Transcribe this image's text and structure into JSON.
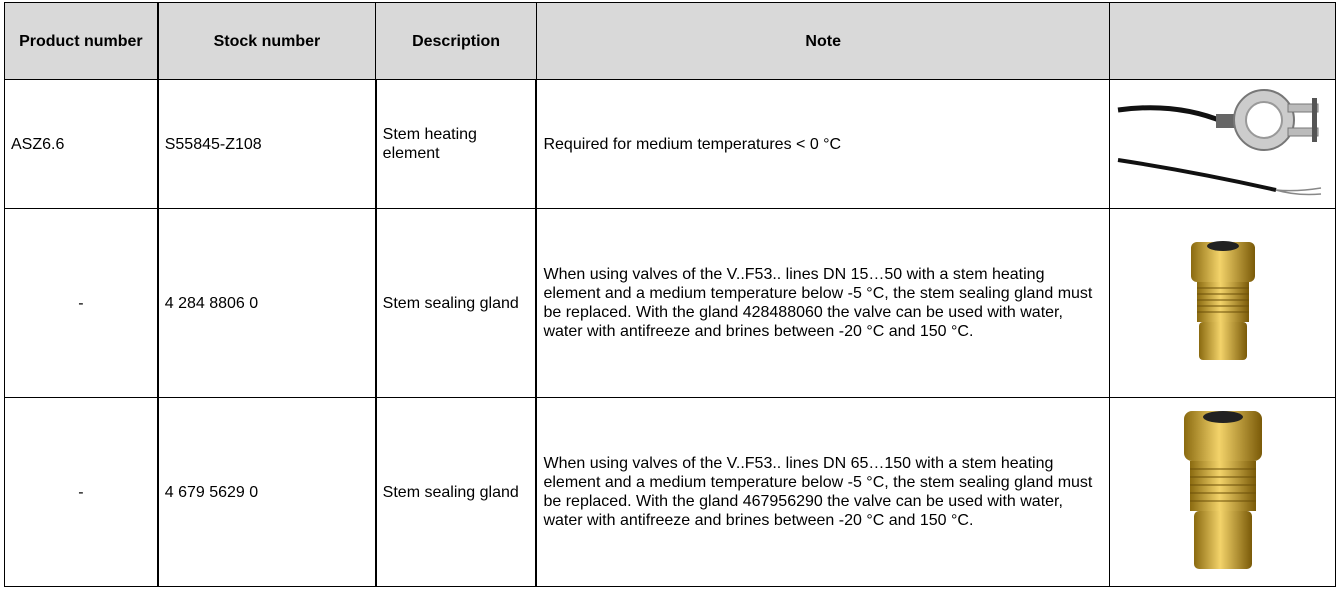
{
  "table": {
    "header": [
      "Product number",
      "Stock number",
      "Description",
      "Note"
    ],
    "rows": [
      [
        "ASZ6.6",
        "S55845-Z108",
        "Stem heating element",
        "Required for medium temperatures < 0 °C"
      ],
      [
        "-",
        "4 284 8806 0",
        "Stem sealing gland",
        "When using valves of the V..F53.. lines DN 15…50 with a stem heating element and a medium temperature below -5 °C, the stem sealing gland must be replaced. With the gland 428488060 the valve can be used with water, water with antifreeze and brines between -20 °C and 150 °C."
      ],
      [
        "-",
        "4 679 5629 0",
        "Stem sealing gland",
        "When using valves of the V..F53.. lines DN 65…150 with a stem heating element and a medium temperature below -5 °C, the stem sealing gland must be replaced. With the gland 467956290 the valve can be used with water, water with antifreeze and brines between -20 °C and 150 °C."
      ]
    ]
  }
}
